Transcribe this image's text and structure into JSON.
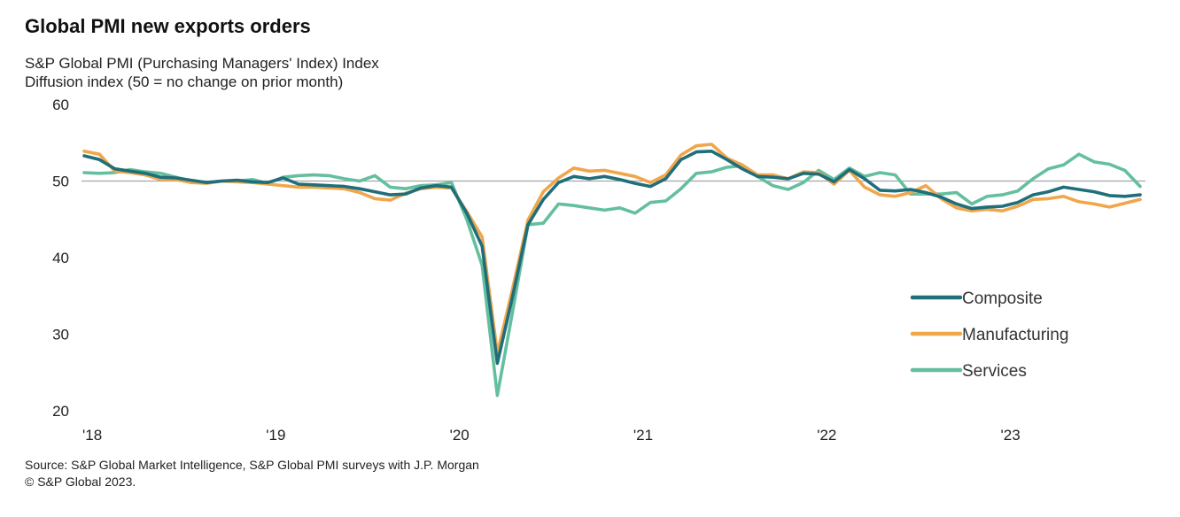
{
  "chart_data": {
    "type": "line",
    "title": "Global PMI new exports orders",
    "subtitle_lines": [
      "S&P Global  PMI (Purchasing Managers' Index) Index",
      "Diffusion index  (50 = no change on prior month)"
    ],
    "source_lines": [
      "Source: S&P Global Market Intelligence,  S&P Global PMI surveys with J.P. Morgan",
      "© S&P Global 2023."
    ],
    "ylim": [
      20,
      60
    ],
    "yticks": [
      "60",
      "50",
      "40",
      "30",
      "20"
    ],
    "reference_line": 50,
    "xticks": [
      "'18",
      "'19",
      "'20",
      "'21",
      "'22",
      "'23"
    ],
    "x_start": "2018-01",
    "x_end": "2023-09",
    "legend_position": "right",
    "series": [
      {
        "name": "Composite",
        "color": "#1f6e7a",
        "values": [
          53.3,
          52.8,
          51.6,
          51.3,
          51.0,
          50.5,
          50.4,
          50.1,
          49.8,
          50.0,
          50.1,
          49.9,
          49.8,
          50.4,
          49.6,
          49.5,
          49.4,
          49.3,
          49.0,
          48.6,
          48.2,
          48.3,
          49.1,
          49.4,
          49.2,
          45.8,
          41.5,
          26.2,
          35.0,
          44.3,
          47.6,
          49.8,
          50.6,
          50.3,
          50.6,
          50.2,
          49.7,
          49.3,
          50.3,
          52.8,
          53.8,
          53.9,
          52.8,
          51.6,
          50.6,
          50.5,
          50.3,
          51.0,
          50.9,
          49.9,
          51.5,
          50.3,
          48.8,
          48.7,
          48.9,
          48.5,
          47.9,
          47.0,
          46.4,
          46.6,
          46.7,
          47.2,
          48.2,
          48.6,
          49.2,
          48.9,
          48.6,
          48.1,
          48.0,
          48.2
        ]
      },
      {
        "name": "Manufacturing",
        "color": "#f0a64b",
        "values": [
          53.9,
          53.5,
          51.3,
          51.1,
          50.8,
          50.2,
          50.2,
          49.8,
          49.7,
          50.0,
          49.9,
          49.8,
          49.6,
          49.4,
          49.2,
          49.2,
          49.1,
          49.0,
          48.5,
          47.7,
          47.5,
          48.4,
          49.0,
          49.2,
          49.1,
          46.0,
          42.7,
          27.5,
          36.0,
          44.9,
          48.6,
          50.4,
          51.7,
          51.3,
          51.4,
          51.0,
          50.6,
          49.8,
          50.8,
          53.4,
          54.6,
          54.8,
          53.0,
          52.1,
          50.8,
          50.8,
          50.3,
          51.2,
          51.1,
          49.6,
          51.4,
          49.2,
          48.2,
          48.0,
          48.5,
          49.4,
          47.7,
          46.5,
          46.1,
          46.3,
          46.1,
          46.7,
          47.6,
          47.7,
          48.0,
          47.3,
          47.0,
          46.6,
          47.1,
          47.6
        ]
      },
      {
        "name": "Services",
        "color": "#64bf9f",
        "values": [
          51.1,
          51.0,
          51.1,
          51.5,
          51.2,
          51.0,
          50.5,
          50.0,
          49.8,
          50.0,
          50.0,
          50.2,
          49.7,
          50.5,
          50.7,
          50.8,
          50.7,
          50.3,
          50.0,
          50.7,
          49.2,
          49.0,
          49.4,
          49.5,
          49.8,
          45.0,
          39.0,
          22.0,
          33.0,
          44.3,
          44.5,
          47.0,
          46.8,
          46.5,
          46.2,
          46.5,
          45.8,
          47.2,
          47.4,
          49.0,
          51.0,
          51.2,
          51.8,
          52.0,
          50.6,
          49.4,
          48.9,
          49.8,
          51.4,
          50.2,
          51.7,
          50.6,
          51.1,
          50.8,
          48.3,
          48.3,
          48.3,
          48.5,
          47.0,
          48.0,
          48.2,
          48.7,
          50.3,
          51.6,
          52.1,
          53.5,
          52.5,
          52.2,
          51.4,
          49.3
        ]
      }
    ]
  }
}
